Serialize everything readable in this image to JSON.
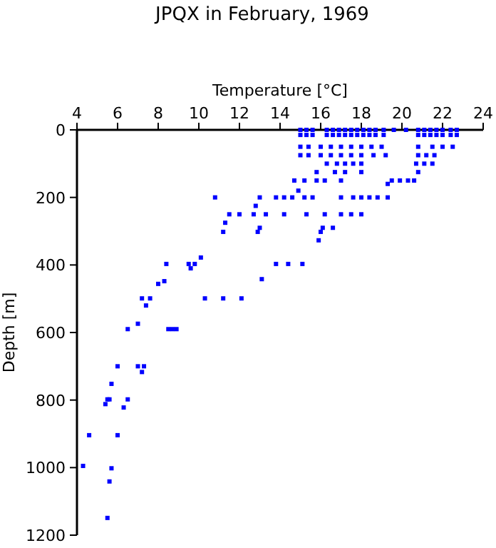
{
  "chart_data": {
    "type": "scatter",
    "title": "JPQX in February, 1969",
    "xlabel": "Temperature [°C]",
    "ylabel": "Depth [m]",
    "xlim": [
      4,
      24
    ],
    "xticks": [
      4,
      6,
      8,
      10,
      12,
      14,
      16,
      18,
      20,
      22,
      24
    ],
    "ylim": [
      1200,
      0
    ],
    "yticks": [
      0,
      200,
      400,
      600,
      800,
      1000,
      1200
    ],
    "marker": "square",
    "grid": false,
    "series": [
      {
        "color": "#0000ff",
        "x": [
          15.0,
          15.3,
          15.6,
          16.3,
          16.6,
          16.9,
          17.2,
          17.5,
          17.8,
          18.1,
          18.4,
          18.7,
          19.1,
          19.6,
          20.2,
          20.8,
          21.1,
          21.4,
          21.7,
          22.0,
          22.4,
          22.7,
          15.0,
          15.3,
          15.6,
          16.3,
          16.6,
          16.9,
          17.2,
          17.5,
          17.8,
          18.1,
          18.4,
          18.7,
          19.1,
          20.8,
          21.1,
          21.4,
          21.7,
          22.0,
          22.4,
          22.7,
          15.0,
          15.4,
          16.0,
          16.5,
          17.0,
          17.5,
          18.0,
          18.5,
          19.0,
          20.8,
          21.5,
          22.0,
          22.5,
          15.0,
          15.4,
          16.0,
          16.5,
          17.0,
          17.5,
          18.0,
          18.6,
          19.2,
          20.8,
          21.2,
          21.6,
          16.3,
          16.8,
          17.2,
          17.6,
          18.0,
          20.7,
          21.1,
          21.5,
          15.8,
          16.7,
          17.2,
          18.0,
          20.8,
          14.7,
          15.2,
          15.8,
          16.2,
          17.0,
          19.5,
          19.9,
          20.3,
          20.6,
          19.3,
          14.9,
          10.8,
          13.0,
          13.8,
          14.2,
          14.6,
          15.2,
          15.6,
          17.0,
          17.6,
          18.0,
          18.4,
          18.8,
          19.3,
          12.8,
          11.5,
          12.0,
          12.7,
          13.3,
          14.2,
          15.3,
          16.2,
          17.0,
          17.5,
          18.0,
          11.3,
          13.0,
          16.1,
          16.6,
          11.2,
          12.9,
          16.0,
          15.9,
          10.1,
          8.4,
          9.5,
          9.8,
          13.8,
          14.4,
          15.1,
          9.6,
          13.1,
          8.3,
          8.0,
          7.2,
          7.6,
          10.3,
          11.2,
          12.1,
          7.4,
          7.0,
          6.5,
          8.5,
          8.7,
          8.9,
          6.0,
          7.0,
          7.3,
          7.2,
          5.7,
          5.5,
          5.6,
          6.5,
          5.4,
          6.3,
          4.6,
          6.0,
          4.3,
          5.7,
          5.6,
          5.5
        ],
        "values": [
          0,
          0,
          0,
          0,
          0,
          0,
          0,
          0,
          0,
          0,
          0,
          0,
          0,
          0,
          0,
          0,
          0,
          0,
          0,
          0,
          0,
          0,
          15,
          15,
          15,
          15,
          15,
          15,
          15,
          15,
          15,
          15,
          15,
          15,
          15,
          15,
          15,
          15,
          15,
          15,
          15,
          15,
          50,
          50,
          50,
          50,
          50,
          50,
          50,
          50,
          50,
          50,
          50,
          50,
          50,
          75,
          75,
          75,
          75,
          75,
          75,
          75,
          75,
          75,
          75,
          75,
          75,
          100,
          100,
          100,
          100,
          100,
          100,
          100,
          100,
          125,
          125,
          125,
          125,
          125,
          150,
          150,
          150,
          150,
          150,
          150,
          150,
          150,
          150,
          160,
          180,
          200,
          200,
          200,
          200,
          200,
          200,
          200,
          200,
          200,
          200,
          200,
          200,
          200,
          225,
          250,
          250,
          250,
          250,
          250,
          250,
          250,
          250,
          250,
          250,
          275,
          290,
          290,
          290,
          302,
          302,
          302,
          327,
          378,
          397,
          397,
          397,
          397,
          397,
          397,
          410,
          442,
          448,
          456,
          499,
          499,
          499,
          499,
          499,
          520,
          574,
          590,
          590,
          590,
          590,
          700,
          700,
          700,
          717,
          752,
          798,
          798,
          798,
          812,
          822,
          904,
          904,
          995,
          1002,
          1041,
          1149
        ]
      }
    ]
  }
}
